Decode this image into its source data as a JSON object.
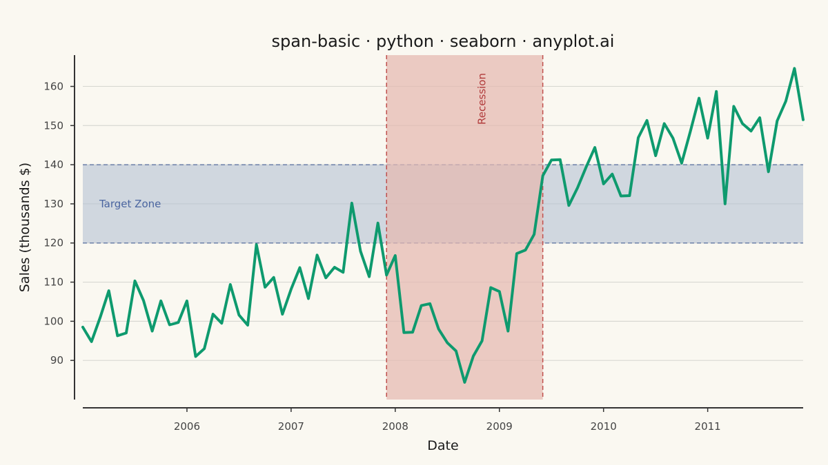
{
  "chart_data": {
    "type": "line",
    "title": "span-basic · python · seaborn · anyplot.ai",
    "xlabel": "Date",
    "ylabel": "Sales (thousands $)",
    "xlim": [
      "2005-01",
      "2011-12"
    ],
    "ylim": [
      80,
      168
    ],
    "x_ticks": [
      "2006",
      "2007",
      "2008",
      "2009",
      "2010",
      "2011"
    ],
    "y_ticks": [
      90,
      100,
      110,
      120,
      130,
      140,
      150,
      160
    ],
    "grid": "horizontal",
    "colors": {
      "line": "#0E9A6E",
      "recession_fill": "#E4B8B0",
      "recession_edge": "#C0504D",
      "recession_text": "#B03A3A",
      "target_fill": "#B6C3D4",
      "target_edge": "#6B7FA8",
      "target_text": "#4A65A0",
      "grid": "#D8D8D2",
      "axis": "#333333"
    },
    "spans": [
      {
        "orientation": "vertical",
        "label": "Recession",
        "start": "2007-12",
        "end": "2009-06"
      },
      {
        "orientation": "horizontal",
        "label": "Target Zone",
        "start": 120,
        "end": 140
      }
    ],
    "series": [
      {
        "x": [
          "2005-01",
          "2005-02",
          "2005-03",
          "2005-04",
          "2005-05",
          "2005-06",
          "2005-07",
          "2005-08",
          "2005-09",
          "2005-10",
          "2005-11",
          "2005-12",
          "2006-01",
          "2006-02",
          "2006-03",
          "2006-04",
          "2006-05",
          "2006-06",
          "2006-07",
          "2006-08",
          "2006-09",
          "2006-10",
          "2006-11",
          "2006-12",
          "2007-01",
          "2007-02",
          "2007-03",
          "2007-04",
          "2007-05",
          "2007-06",
          "2007-07",
          "2007-08",
          "2007-09",
          "2007-10",
          "2007-11",
          "2007-12",
          "2008-01",
          "2008-02",
          "2008-03",
          "2008-04",
          "2008-05",
          "2008-06",
          "2008-07",
          "2008-08",
          "2008-09",
          "2008-10",
          "2008-11",
          "2008-12",
          "2009-01",
          "2009-02",
          "2009-03",
          "2009-04",
          "2009-05",
          "2009-06",
          "2009-07",
          "2009-08",
          "2009-09",
          "2009-10",
          "2009-11",
          "2009-12",
          "2010-01",
          "2010-02",
          "2010-03",
          "2010-04",
          "2010-05",
          "2010-06",
          "2010-07",
          "2010-08",
          "2010-09",
          "2010-10",
          "2010-11",
          "2010-12",
          "2011-01",
          "2011-02",
          "2011-03",
          "2011-04",
          "2011-05",
          "2011-06",
          "2011-07",
          "2011-08",
          "2011-09",
          "2011-10",
          "2011-11",
          "2011-12"
        ],
        "y": [
          98.5,
          94.8,
          101.0,
          107.8,
          96.3,
          97.0,
          110.3,
          105.3,
          97.5,
          105.2,
          99.1,
          99.7,
          105.2,
          91.0,
          93.0,
          101.8,
          99.5,
          109.4,
          101.6,
          99.0,
          119.6,
          108.7,
          111.2,
          101.8,
          108.2,
          113.7,
          105.8,
          116.9,
          111.1,
          113.8,
          112.5,
          130.2,
          117.9,
          111.4,
          125.1,
          111.8,
          116.8,
          97.1,
          97.2,
          104.0,
          104.5,
          98.0,
          94.5,
          92.4,
          84.4,
          91.1,
          95.0,
          108.6,
          107.6,
          97.5,
          117.3,
          118.2,
          122.2,
          137.2,
          141.2,
          141.3,
          129.6,
          134.1,
          139.4,
          144.4,
          135.1,
          137.6,
          132.0,
          132.1,
          146.9,
          151.3,
          142.3,
          150.5,
          146.8,
          140.4,
          148.5,
          157.0,
          146.8,
          158.7,
          130.0,
          154.9,
          150.5,
          148.6,
          152.0,
          138.2,
          151.2,
          156.2,
          164.6,
          151.5
        ]
      }
    ]
  }
}
